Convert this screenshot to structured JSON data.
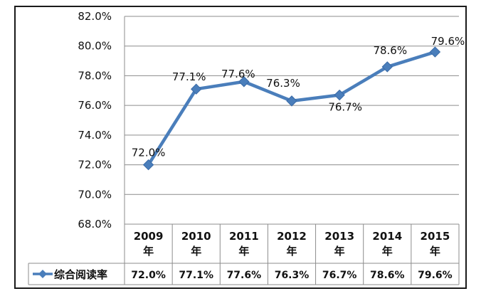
{
  "chart_data": {
    "type": "line",
    "categories": [
      "2009\n年",
      "2010\n年",
      "2011\n年",
      "2012\n年",
      "2013\n年",
      "2014\n年",
      "2015\n年"
    ],
    "series": [
      {
        "name": "综合阅读率",
        "values": [
          72.0,
          77.1,
          77.6,
          76.3,
          76.7,
          78.6,
          79.6
        ],
        "labels": [
          "72.0%",
          "77.1%",
          "77.6%",
          "76.3%",
          "76.7%",
          "78.6%",
          "79.6%"
        ],
        "color": "#4a7ebb"
      }
    ],
    "ylim": [
      68.0,
      82.0
    ],
    "yticks": [
      68.0,
      70.0,
      72.0,
      74.0,
      76.0,
      78.0,
      80.0,
      82.0
    ],
    "ytick_labels": [
      "68.0%",
      "70.0%",
      "72.0%",
      "74.0%",
      "76.0%",
      "78.0%",
      "80.0%",
      "82.0%"
    ],
    "grid": true,
    "legend": "data-table",
    "title": "",
    "xlabel": "",
    "ylabel": ""
  }
}
